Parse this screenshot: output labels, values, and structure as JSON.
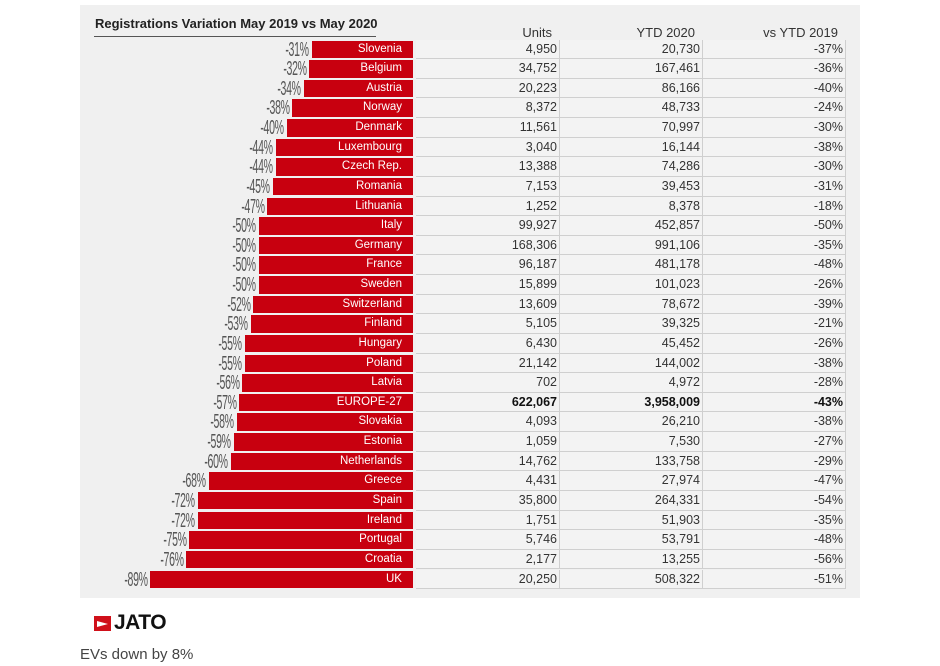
{
  "chart_data": {
    "type": "bar",
    "orientation": "horizontal",
    "title": "Registrations Variation May 2019 vs May 2020",
    "columns": [
      "Units",
      "YTD 2020",
      "vs YTD 2019"
    ],
    "bar_color": "#c8000f",
    "rows": [
      {
        "country": "Slovenia",
        "variation": "-31%",
        "value": -31,
        "units": "4,950",
        "ytd": "20,730",
        "vs_ytd": "-37%"
      },
      {
        "country": "Belgium",
        "variation": "-32%",
        "value": -32,
        "units": "34,752",
        "ytd": "167,461",
        "vs_ytd": "-36%"
      },
      {
        "country": "Austria",
        "variation": "-34%",
        "value": -34,
        "units": "20,223",
        "ytd": "86,166",
        "vs_ytd": "-40%"
      },
      {
        "country": "Norway",
        "variation": "-38%",
        "value": -38,
        "units": "8,372",
        "ytd": "48,733",
        "vs_ytd": "-24%"
      },
      {
        "country": "Denmark",
        "variation": "-40%",
        "value": -40,
        "units": "11,561",
        "ytd": "70,997",
        "vs_ytd": "-30%"
      },
      {
        "country": "Luxembourg",
        "variation": "-44%",
        "value": -44,
        "units": "3,040",
        "ytd": "16,144",
        "vs_ytd": "-38%"
      },
      {
        "country": "Czech Rep.",
        "variation": "-44%",
        "value": -44,
        "units": "13,388",
        "ytd": "74,286",
        "vs_ytd": "-30%"
      },
      {
        "country": "Romania",
        "variation": "-45%",
        "value": -45,
        "units": "7,153",
        "ytd": "39,453",
        "vs_ytd": "-31%"
      },
      {
        "country": "Lithuania",
        "variation": "-47%",
        "value": -47,
        "units": "1,252",
        "ytd": "8,378",
        "vs_ytd": "-18%"
      },
      {
        "country": "Italy",
        "variation": "-50%",
        "value": -50,
        "units": "99,927",
        "ytd": "452,857",
        "vs_ytd": "-50%"
      },
      {
        "country": "Germany",
        "variation": "-50%",
        "value": -50,
        "units": "168,306",
        "ytd": "991,106",
        "vs_ytd": "-35%"
      },
      {
        "country": "France",
        "variation": "-50%",
        "value": -50,
        "units": "96,187",
        "ytd": "481,178",
        "vs_ytd": "-48%"
      },
      {
        "country": "Sweden",
        "variation": "-50%",
        "value": -50,
        "units": "15,899",
        "ytd": "101,023",
        "vs_ytd": "-26%"
      },
      {
        "country": "Switzerland",
        "variation": "-52%",
        "value": -52,
        "units": "13,609",
        "ytd": "78,672",
        "vs_ytd": "-39%"
      },
      {
        "country": "Finland",
        "variation": "-53%",
        "value": -53,
        "units": "5,105",
        "ytd": "39,325",
        "vs_ytd": "-21%"
      },
      {
        "country": "Hungary",
        "variation": "-55%",
        "value": -55,
        "units": "6,430",
        "ytd": "45,452",
        "vs_ytd": "-26%"
      },
      {
        "country": "Poland",
        "variation": "-55%",
        "value": -55,
        "units": "21,142",
        "ytd": "144,002",
        "vs_ytd": "-38%"
      },
      {
        "country": "Latvia",
        "variation": "-56%",
        "value": -56,
        "units": "702",
        "ytd": "4,972",
        "vs_ytd": "-28%"
      },
      {
        "country": "EUROPE-27",
        "variation": "-57%",
        "value": -57,
        "units": "622,067",
        "ytd": "3,958,009",
        "vs_ytd": "-43%",
        "bold": true
      },
      {
        "country": "Slovakia",
        "variation": "-58%",
        "value": -58,
        "units": "4,093",
        "ytd": "26,210",
        "vs_ytd": "-38%"
      },
      {
        "country": "Estonia",
        "variation": "-59%",
        "value": -59,
        "units": "1,059",
        "ytd": "7,530",
        "vs_ytd": "-27%"
      },
      {
        "country": "Netherlands",
        "variation": "-60%",
        "value": -60,
        "units": "14,762",
        "ytd": "133,758",
        "vs_ytd": "-29%"
      },
      {
        "country": "Greece",
        "variation": "-68%",
        "value": -68,
        "units": "4,431",
        "ytd": "27,974",
        "vs_ytd": "-47%"
      },
      {
        "country": "Spain",
        "variation": "-72%",
        "value": -72,
        "units": "35,800",
        "ytd": "264,331",
        "vs_ytd": "-54%"
      },
      {
        "country": "Ireland",
        "variation": "-72%",
        "value": -72,
        "units": "1,751",
        "ytd": "51,903",
        "vs_ytd": "-35%"
      },
      {
        "country": "Portugal",
        "variation": "-75%",
        "value": -75,
        "units": "5,746",
        "ytd": "53,791",
        "vs_ytd": "-48%"
      },
      {
        "country": "Croatia",
        "variation": "-76%",
        "value": -76,
        "units": "2,177",
        "ytd": "13,255",
        "vs_ytd": "-56%"
      },
      {
        "country": "UK",
        "variation": "-89%",
        "value": -89,
        "units": "20,250",
        "ytd": "508,322",
        "vs_ytd": "-51%"
      }
    ]
  },
  "logo": {
    "text": "JATO",
    "color": "#d0101a"
  },
  "caption": "EVs down by 8%"
}
